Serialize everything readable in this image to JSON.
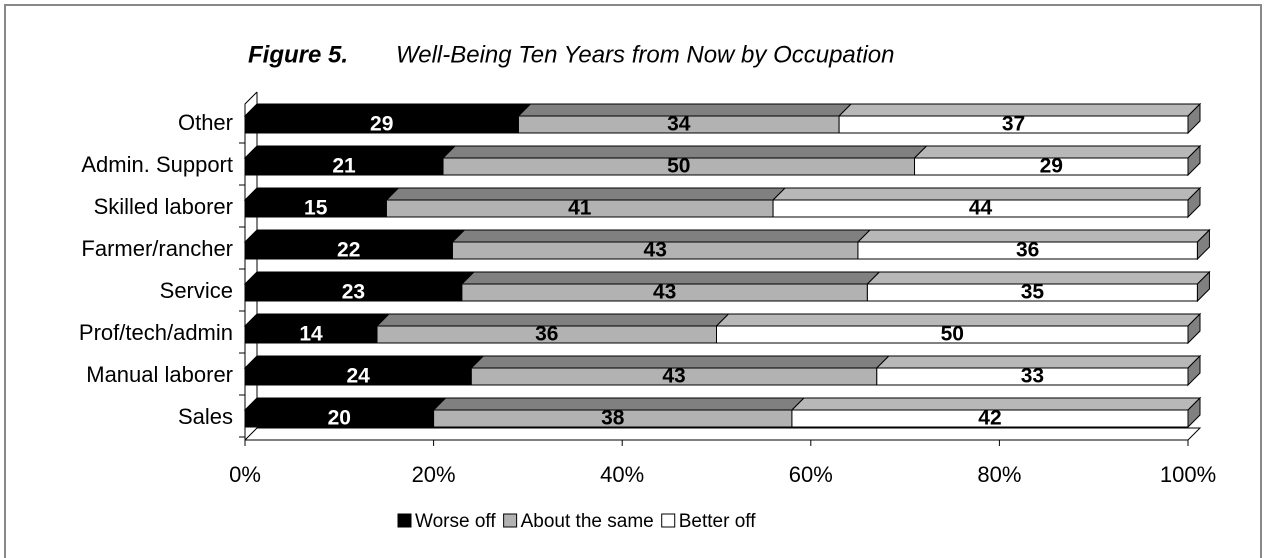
{
  "chart_data": {
    "type": "stacked-bar-3d",
    "orientation": "horizontal",
    "title_label": "Figure 5.",
    "title": "Well-Being Ten Years from Now by Occupation",
    "categories": [
      "Other",
      "Admin. Support",
      "Skilled laborer",
      "Farmer/rancher",
      "Service",
      "Prof/tech/admin",
      "Manual laborer",
      "Sales"
    ],
    "series": [
      {
        "name": "Worse off",
        "color": "#000000",
        "values": [
          29,
          21,
          15,
          22,
          23,
          14,
          24,
          20
        ]
      },
      {
        "name": "About the same",
        "color": "#b2b2b2",
        "values": [
          34,
          50,
          41,
          43,
          43,
          36,
          43,
          38
        ]
      },
      {
        "name": "Better off",
        "color": "#ffffff",
        "values": [
          37,
          29,
          44,
          36,
          35,
          50,
          33,
          42
        ]
      }
    ],
    "xlim": [
      0,
      100
    ],
    "xticks": [
      {
        "value": 0,
        "label": "0%"
      },
      {
        "value": 20,
        "label": "20%"
      },
      {
        "value": 40,
        "label": "40%"
      },
      {
        "value": 60,
        "label": "60%"
      },
      {
        "value": 80,
        "label": "80%"
      },
      {
        "value": 100,
        "label": "100%"
      }
    ],
    "legend_position": "bottom",
    "grid": false
  }
}
